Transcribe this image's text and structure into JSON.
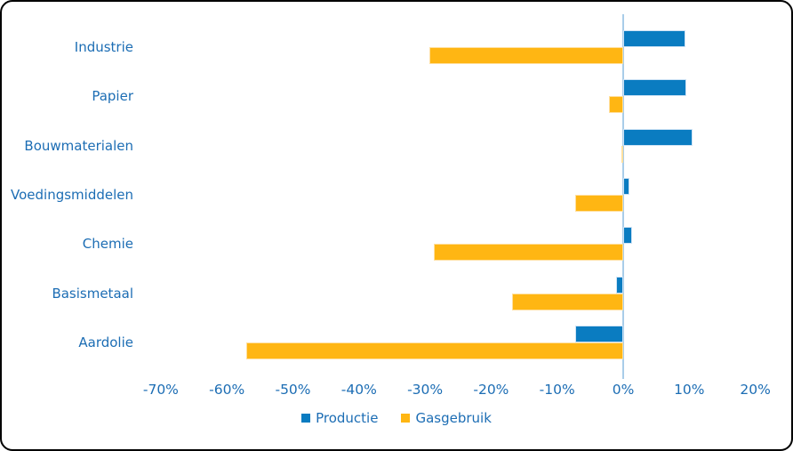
{
  "card": {
    "background": "#ffffff",
    "border_color": "#000000"
  },
  "chart_data": {
    "type": "bar",
    "orientation": "horizontal",
    "title": "",
    "xlabel": "",
    "ylabel": "",
    "grid": false,
    "legend_position": "bottom",
    "categories": [
      "Industrie",
      "Papier",
      "Bouwmaterialen",
      "Voedingsmiddelen",
      "Chemie",
      "Basismetaal",
      "Aardolie"
    ],
    "series": [
      {
        "name": "Productie",
        "color": "#0A7CC1",
        "values": [
          9.4,
          9.6,
          10.5,
          1.0,
          1.4,
          -1.1,
          -7.3
        ]
      },
      {
        "name": "Gasgebruik",
        "color": "#FFB613",
        "values": [
          -29.3,
          -2.1,
          -0.3,
          -7.3,
          -28.7,
          -16.8,
          -57.1
        ]
      }
    ],
    "value_unit": "%",
    "x_ticks": [
      "-70%",
      "-60%",
      "-50%",
      "-40%",
      "-30%",
      "-20%",
      "-10%",
      "0%",
      "10%",
      "20%"
    ],
    "x_tick_values": [
      -70,
      -60,
      -50,
      -40,
      -30,
      -20,
      -10,
      0,
      10,
      20
    ],
    "xlim": [
      -74,
      26
    ],
    "axis_text_color": "#1C6DB4",
    "zero_line_color": "#A9CDE9"
  }
}
